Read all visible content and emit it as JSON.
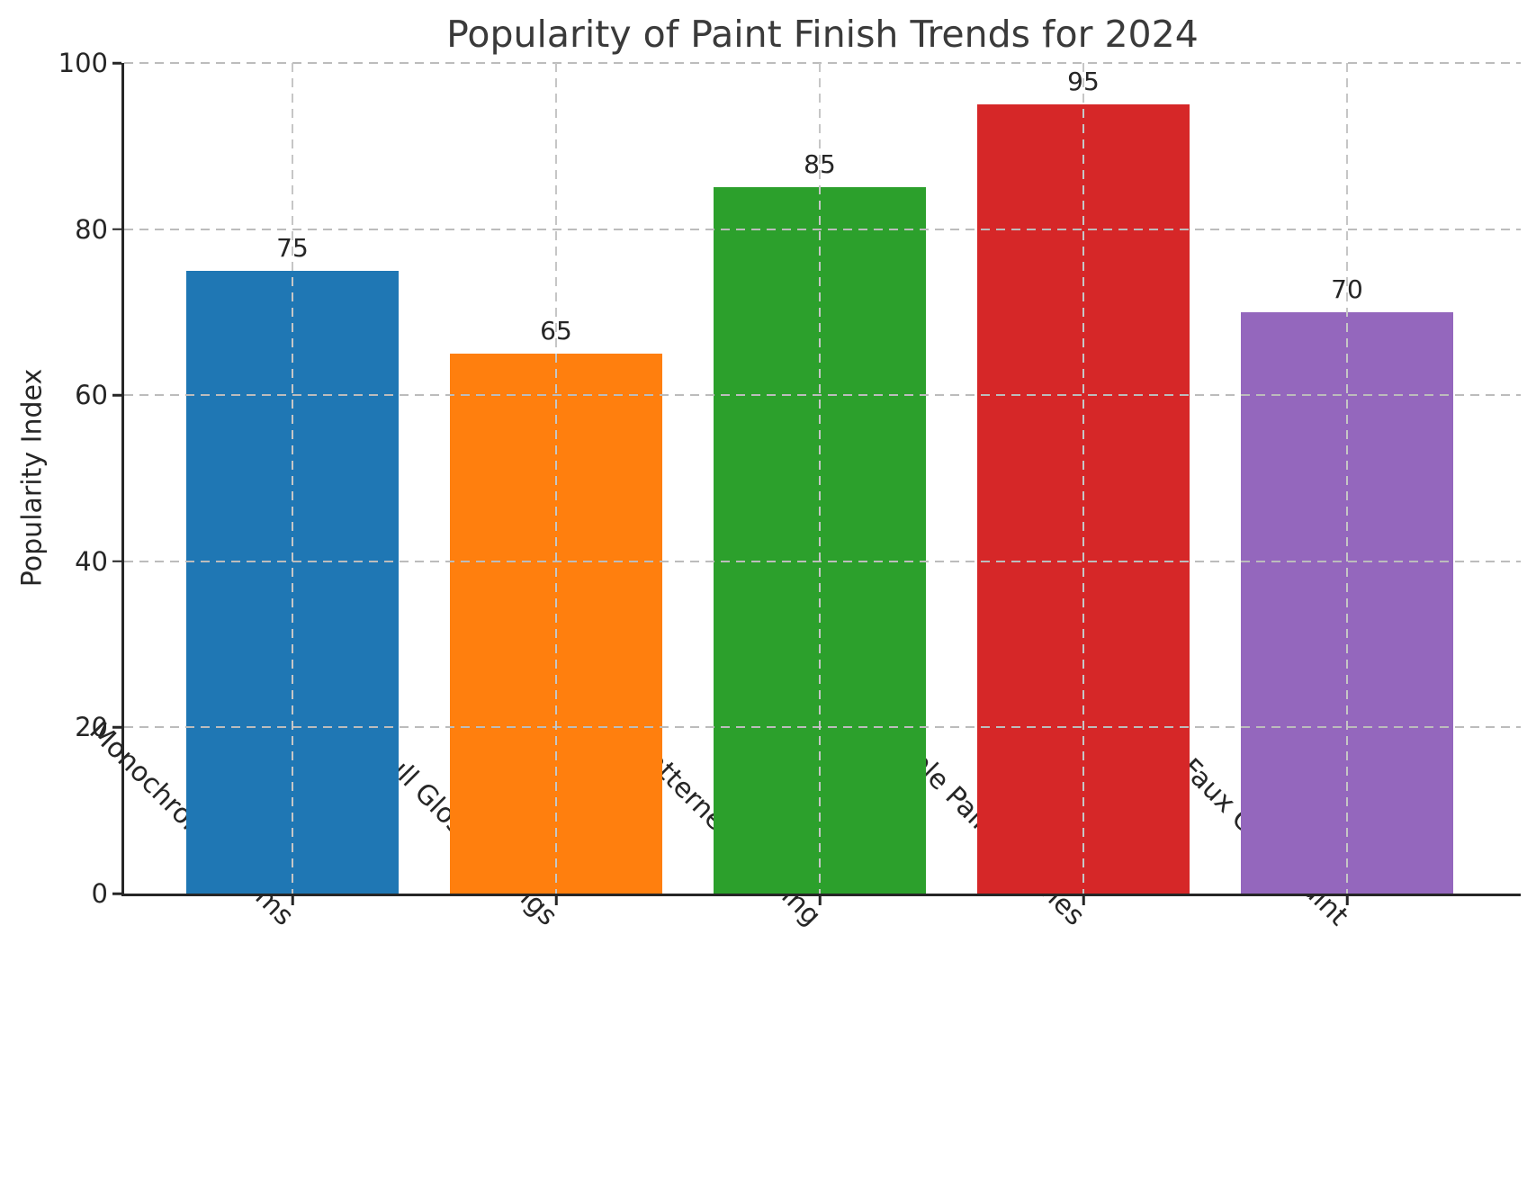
{
  "title": "Popularity of Paint Finish Trends for 2024",
  "y_axis_label": "Popularity Index",
  "chart_data": {
    "type": "bar",
    "title": "Popularity of Paint Finish Trends for 2024",
    "xlabel": "",
    "ylabel": "Popularity Index",
    "categories": [
      "Monochrome Rooms",
      "Full Gloss Ceilings",
      "Patterned Flooring",
      "Multiple Paint Finishes",
      "Faux Chalk Paint"
    ],
    "values": [
      75,
      65,
      85,
      95,
      70
    ],
    "value_labels": [
      "75",
      "65",
      "85",
      "95",
      "70"
    ],
    "bar_colors": [
      "#1f77b4",
      "#ff7f0e",
      "#2ca02c",
      "#d62728",
      "#9467bd"
    ],
    "ylim": [
      0,
      100
    ],
    "yticks": [
      0,
      20,
      40,
      60,
      80,
      100
    ],
    "grid": "dashed gridlines on both axes, drawn above bars",
    "legend": "none"
  },
  "colors": {
    "background": "#ffffff",
    "title_text": "#3a3a3a",
    "tick_text": "#262626",
    "spine": "#262626",
    "grid_h": "#bcbcbc",
    "grid_v": "#c6c6c6"
  }
}
